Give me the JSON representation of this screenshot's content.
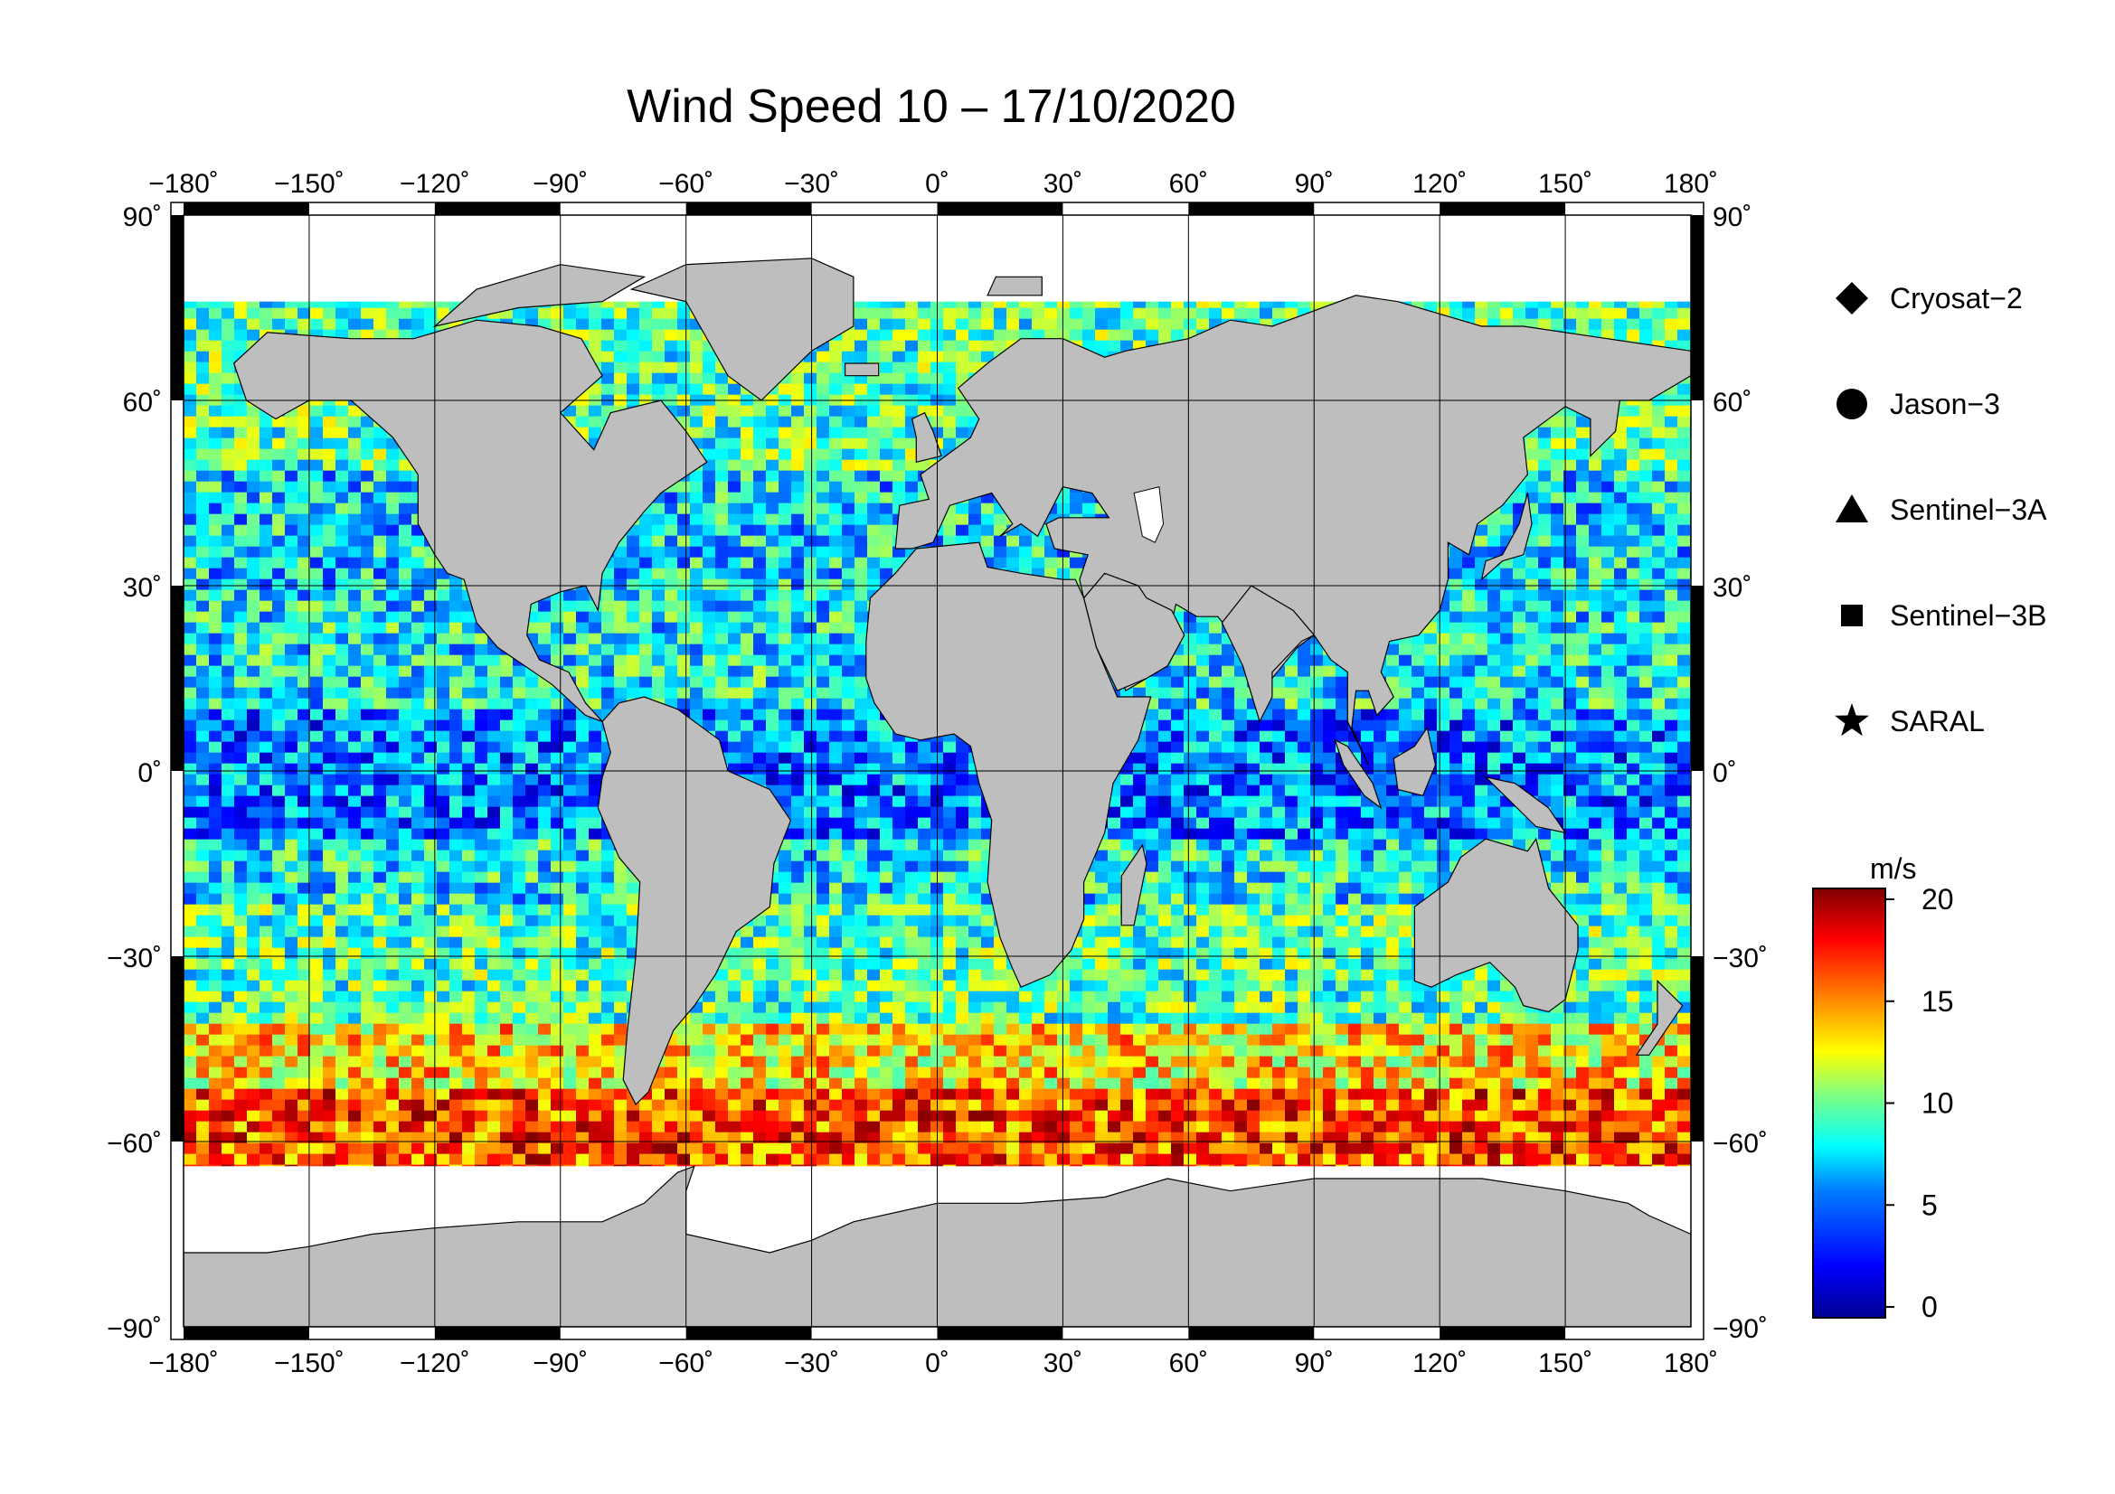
{
  "title": "Wind Speed 10 – 17/10/2020",
  "axes": {
    "lon_ticks": [
      "−180˚",
      "−150˚",
      "−120˚",
      "−90˚",
      "−60˚",
      "−30˚",
      "0˚",
      "30˚",
      "60˚",
      "90˚",
      "120˚",
      "150˚",
      "180˚"
    ],
    "lat_ticks": [
      "90˚",
      "60˚",
      "30˚",
      "0˚",
      "−30˚",
      "−60˚",
      "−90˚"
    ]
  },
  "legend": [
    {
      "name": "Cryosat−2",
      "symbol": "diamond"
    },
    {
      "name": "Jason−3",
      "symbol": "circle"
    },
    {
      "name": "Sentinel−3A",
      "symbol": "triangle"
    },
    {
      "name": "Sentinel−3B",
      "symbol": "square"
    },
    {
      "name": "SARAL",
      "symbol": "star"
    }
  ],
  "colorbar": {
    "unit": "m/s",
    "ticks": [
      "20",
      "15",
      "10",
      "5",
      "0"
    ],
    "range": [
      0,
      20
    ],
    "colors": [
      "#00008f",
      "#0000ff",
      "#0080ff",
      "#00ffff",
      "#80ff80",
      "#ffff00",
      "#ff8000",
      "#ff0000",
      "#800000"
    ]
  },
  "map": {
    "land_color": "#bebebe",
    "ice_color": "#ffffff",
    "lon_range": [
      -180,
      180
    ],
    "lat_range": [
      -90,
      90
    ]
  }
}
